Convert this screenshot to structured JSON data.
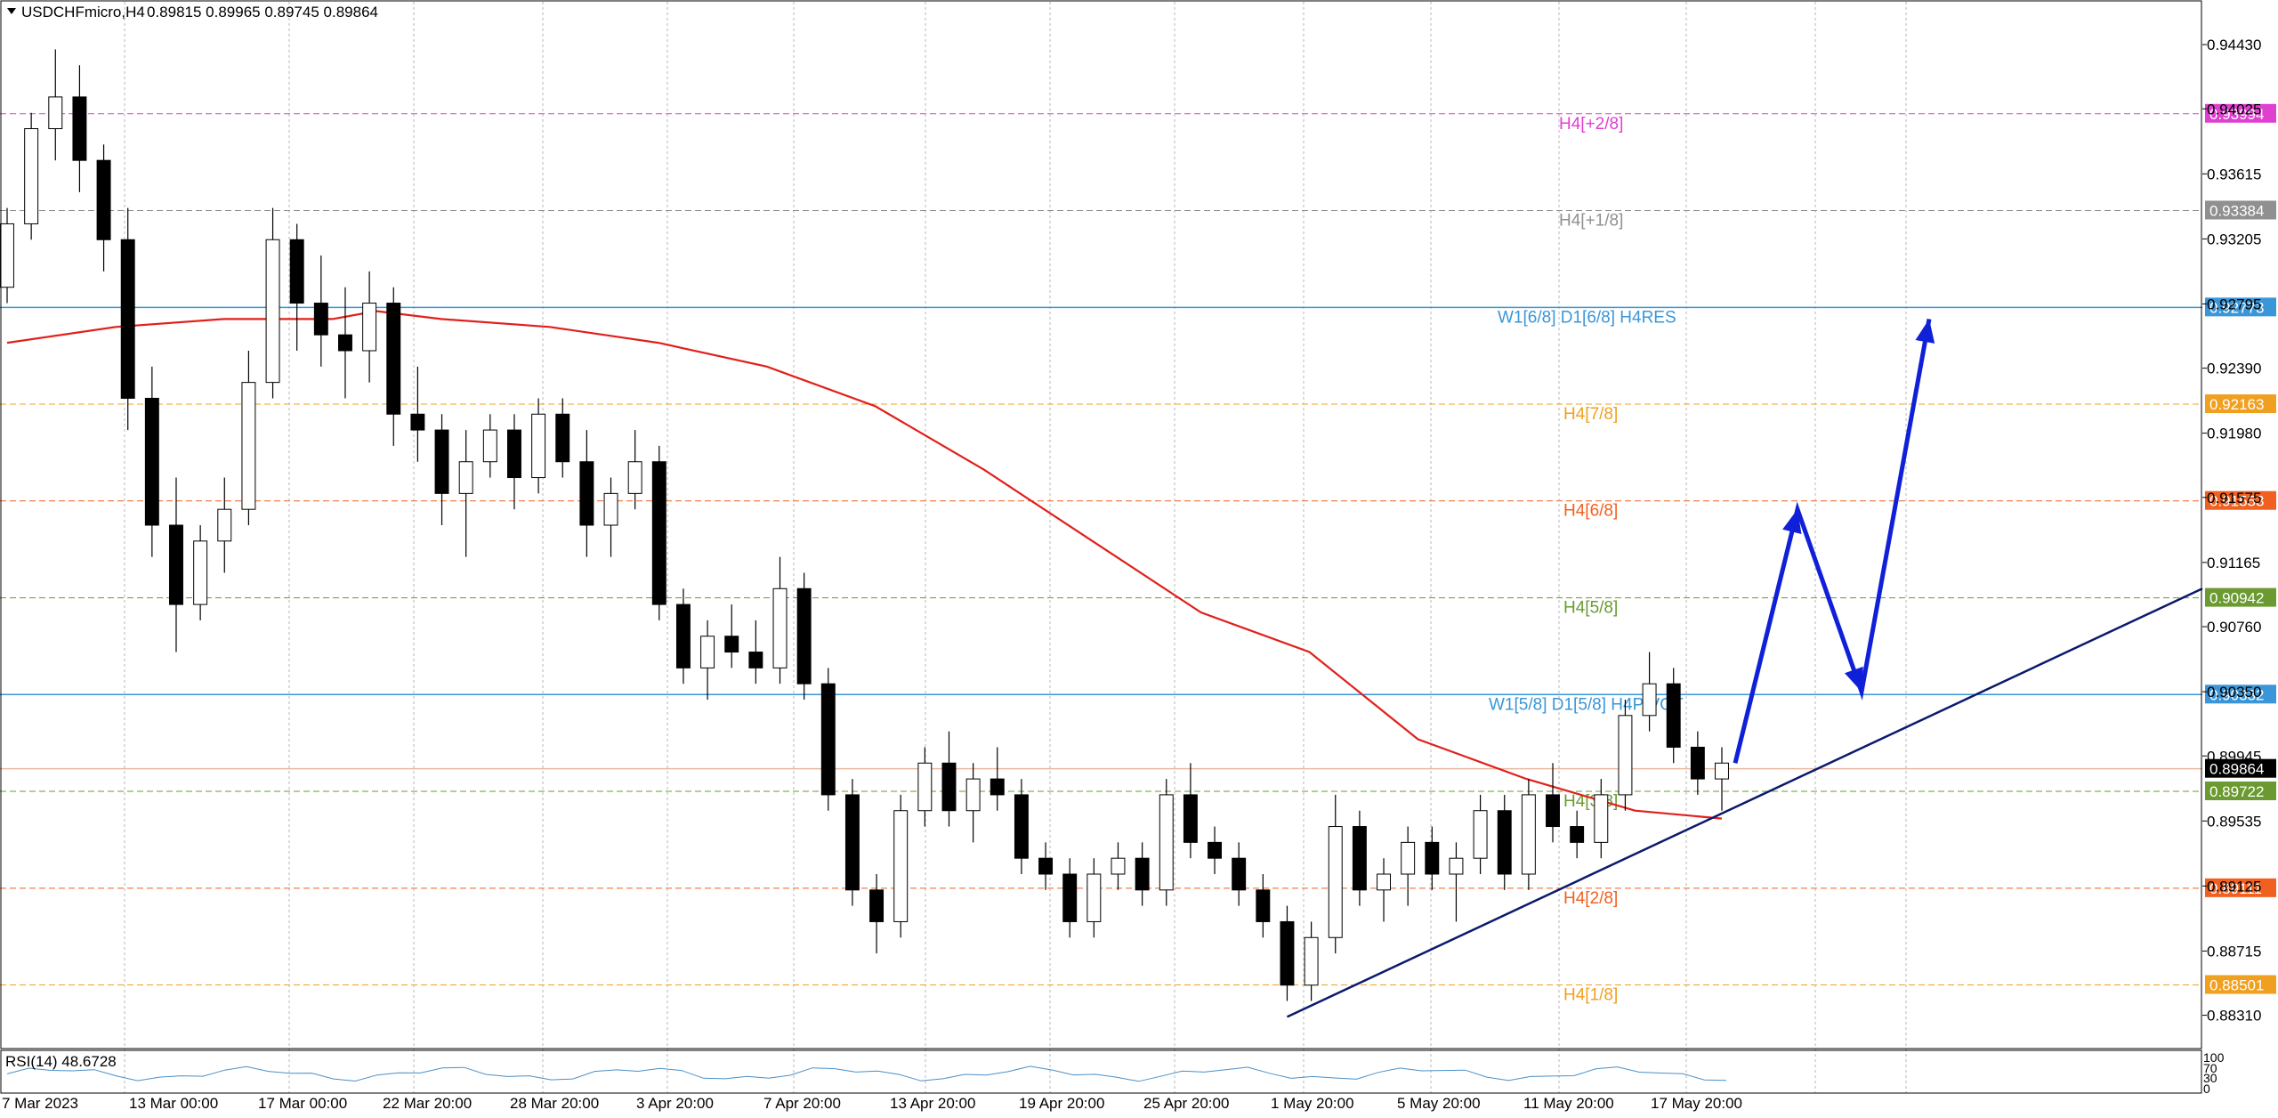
{
  "header": {
    "symbol_label": "USDCHFmicro,H4",
    "ohlc_label": "0.89815 0.89965 0.89745 0.89864"
  },
  "indicator": {
    "label": "RSI(14) 48.6728",
    "scale_labels": [
      "100",
      "70",
      "30",
      "0"
    ]
  },
  "colors": {
    "candle": "#000000",
    "ma": "#e0201b",
    "weekly_line": "#4a90c8",
    "trendline": "#0b1a6b",
    "projection": "#1020d8",
    "grid": "#b7b7b7",
    "current_price_box": "#000000",
    "rsi": "#4a90c8"
  },
  "chart_data": {
    "type": "candlestick",
    "symbol": "USDCHFmicro",
    "timeframe": "H4",
    "ylim": [
      0.881,
      0.947
    ],
    "y_ticks": [
      "0.94430",
      "0.94025",
      "0.93615",
      "0.93205",
      "0.92795",
      "0.92390",
      "0.91980",
      "0.91575",
      "0.91165",
      "0.90760",
      "0.90350",
      "0.89945",
      "0.89535",
      "0.89125",
      "0.88715",
      "0.88310"
    ],
    "x_labels": [
      "7 Mar 2023",
      "13 Mar 00:00",
      "17 Mar 00:00",
      "22 Mar 20:00",
      "28 Mar 20:00",
      "3 Apr 20:00",
      "7 Apr 20:00",
      "13 Apr 20:00",
      "19 Apr 20:00",
      "25 Apr 20:00",
      "1 May 20:00",
      "5 May 20:00",
      "11 May 20:00",
      "17 May 20:00"
    ],
    "levels": [
      {
        "label": "H4[+2/8]",
        "price": "0.93994",
        "value": 0.93994,
        "color": "#e040d0",
        "style": "dash"
      },
      {
        "label": "H4[+1/8]",
        "price": "0.93384",
        "value": 0.93384,
        "color": "#909090",
        "style": "dash"
      },
      {
        "label": "W1[6/8] D1[6/8] H4RES",
        "price": "0.92773",
        "value": 0.92773,
        "color": "#3a96d8",
        "style": "solid"
      },
      {
        "label": "H4[7/8]",
        "price": "0.92163",
        "value": 0.92163,
        "color": "#f0a020",
        "style": "dash"
      },
      {
        "label": "H4[6/8]",
        "price": "0.91553",
        "value": 0.91553,
        "color": "#f06020",
        "style": "dash"
      },
      {
        "label": "H4[5/8]",
        "price": "0.90942",
        "value": 0.90942,
        "color": "#6a9a30",
        "style": "dash"
      },
      {
        "label": "W1[5/8] D1[5/8] H4PIVOT",
        "price": "0.90332",
        "value": 0.90332,
        "color": "#3a96d8",
        "style": "solid"
      },
      {
        "label": "H4[3/8]",
        "price": "0.89722",
        "value": 0.89722,
        "color": "#6a9a30",
        "style": "dash"
      },
      {
        "label": "H4[2/8]",
        "price": "0.89111",
        "value": 0.89111,
        "color": "#f06020",
        "style": "dash"
      },
      {
        "label": "H4[1/8]",
        "price": "0.88501",
        "value": 0.88501,
        "color": "#f0a020",
        "style": "dash"
      }
    ],
    "current_price": {
      "price": "0.89864",
      "value": 0.89864
    },
    "candles": [
      [
        0.929,
        0.934,
        0.928,
        0.933
      ],
      [
        0.933,
        0.94,
        0.932,
        0.939
      ],
      [
        0.939,
        0.944,
        0.937,
        0.941
      ],
      [
        0.941,
        0.943,
        0.935,
        0.937
      ],
      [
        0.937,
        0.938,
        0.93,
        0.932
      ],
      [
        0.932,
        0.934,
        0.92,
        0.922
      ],
      [
        0.922,
        0.924,
        0.912,
        0.914
      ],
      [
        0.914,
        0.917,
        0.906,
        0.909
      ],
      [
        0.909,
        0.914,
        0.908,
        0.913
      ],
      [
        0.913,
        0.917,
        0.911,
        0.915
      ],
      [
        0.915,
        0.925,
        0.914,
        0.923
      ],
      [
        0.923,
        0.934,
        0.922,
        0.932
      ],
      [
        0.932,
        0.933,
        0.925,
        0.928
      ],
      [
        0.928,
        0.931,
        0.924,
        0.926
      ],
      [
        0.926,
        0.929,
        0.922,
        0.925
      ],
      [
        0.925,
        0.93,
        0.923,
        0.928
      ],
      [
        0.928,
        0.929,
        0.919,
        0.921
      ],
      [
        0.921,
        0.924,
        0.918,
        0.92
      ],
      [
        0.92,
        0.921,
        0.914,
        0.916
      ],
      [
        0.916,
        0.92,
        0.912,
        0.918
      ],
      [
        0.918,
        0.921,
        0.917,
        0.92
      ],
      [
        0.92,
        0.921,
        0.915,
        0.917
      ],
      [
        0.917,
        0.922,
        0.916,
        0.921
      ],
      [
        0.921,
        0.922,
        0.917,
        0.918
      ],
      [
        0.918,
        0.92,
        0.912,
        0.914
      ],
      [
        0.914,
        0.917,
        0.912,
        0.916
      ],
      [
        0.916,
        0.92,
        0.915,
        0.918
      ],
      [
        0.918,
        0.919,
        0.908,
        0.909
      ],
      [
        0.909,
        0.91,
        0.904,
        0.905
      ],
      [
        0.905,
        0.908,
        0.903,
        0.907
      ],
      [
        0.907,
        0.909,
        0.905,
        0.906
      ],
      [
        0.906,
        0.908,
        0.904,
        0.905
      ],
      [
        0.905,
        0.912,
        0.904,
        0.91
      ],
      [
        0.91,
        0.911,
        0.903,
        0.904
      ],
      [
        0.904,
        0.905,
        0.896,
        0.897
      ],
      [
        0.897,
        0.898,
        0.89,
        0.891
      ],
      [
        0.891,
        0.892,
        0.887,
        0.889
      ],
      [
        0.889,
        0.897,
        0.888,
        0.896
      ],
      [
        0.896,
        0.9,
        0.895,
        0.899
      ],
      [
        0.899,
        0.901,
        0.895,
        0.896
      ],
      [
        0.896,
        0.899,
        0.894,
        0.898
      ],
      [
        0.898,
        0.9,
        0.896,
        0.897
      ],
      [
        0.897,
        0.898,
        0.892,
        0.893
      ],
      [
        0.893,
        0.894,
        0.891,
        0.892
      ],
      [
        0.892,
        0.893,
        0.888,
        0.889
      ],
      [
        0.889,
        0.893,
        0.888,
        0.892
      ],
      [
        0.892,
        0.894,
        0.891,
        0.893
      ],
      [
        0.893,
        0.894,
        0.89,
        0.891
      ],
      [
        0.891,
        0.898,
        0.89,
        0.897
      ],
      [
        0.897,
        0.899,
        0.893,
        0.894
      ],
      [
        0.894,
        0.895,
        0.892,
        0.893
      ],
      [
        0.893,
        0.894,
        0.89,
        0.891
      ],
      [
        0.891,
        0.892,
        0.888,
        0.889
      ],
      [
        0.889,
        0.89,
        0.884,
        0.885
      ],
      [
        0.885,
        0.889,
        0.884,
        0.888
      ],
      [
        0.888,
        0.897,
        0.887,
        0.895
      ],
      [
        0.895,
        0.896,
        0.89,
        0.891
      ],
      [
        0.891,
        0.893,
        0.889,
        0.892
      ],
      [
        0.892,
        0.895,
        0.89,
        0.894
      ],
      [
        0.894,
        0.895,
        0.891,
        0.892
      ],
      [
        0.892,
        0.894,
        0.889,
        0.893
      ],
      [
        0.893,
        0.897,
        0.892,
        0.896
      ],
      [
        0.896,
        0.897,
        0.891,
        0.892
      ],
      [
        0.892,
        0.898,
        0.891,
        0.897
      ],
      [
        0.897,
        0.899,
        0.894,
        0.895
      ],
      [
        0.895,
        0.896,
        0.893,
        0.894
      ],
      [
        0.894,
        0.898,
        0.893,
        0.897
      ],
      [
        0.897,
        0.903,
        0.896,
        0.902
      ],
      [
        0.902,
        0.906,
        0.901,
        0.904
      ],
      [
        0.904,
        0.905,
        0.899,
        0.9
      ],
      [
        0.9,
        0.901,
        0.897,
        0.898
      ],
      [
        0.898,
        0.9,
        0.896,
        0.899
      ]
    ],
    "ma_path_values": [
      [
        0.0,
        0.9255
      ],
      [
        0.05,
        0.9265
      ],
      [
        0.1,
        0.927
      ],
      [
        0.15,
        0.927
      ],
      [
        0.17,
        0.9275
      ],
      [
        0.2,
        0.927
      ],
      [
        0.25,
        0.9265
      ],
      [
        0.3,
        0.9255
      ],
      [
        0.35,
        0.924
      ],
      [
        0.4,
        0.9215
      ],
      [
        0.45,
        0.9175
      ],
      [
        0.5,
        0.913
      ],
      [
        0.55,
        0.9085
      ],
      [
        0.6,
        0.906
      ],
      [
        0.65,
        0.9005
      ],
      [
        0.7,
        0.898
      ],
      [
        0.75,
        0.896
      ],
      [
        0.79,
        0.8955
      ]
    ],
    "trendline": {
      "from_index": 53,
      "from_value": 0.883,
      "to_value": 0.91,
      "to_x_fraction": 1.0
    },
    "projection_path_values": [
      [
        0.899,
        0
      ],
      [
        0.915,
        1
      ],
      [
        0.9035,
        2
      ],
      [
        0.927,
        3
      ]
    ]
  }
}
